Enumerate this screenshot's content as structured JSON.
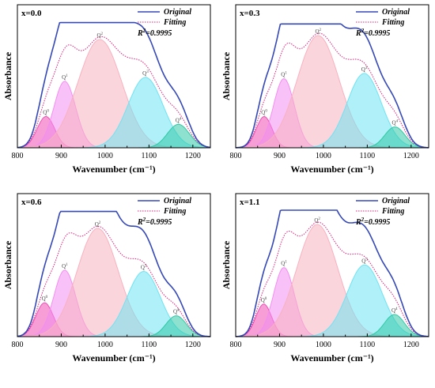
{
  "chart_data": [
    {
      "type": "area",
      "panel_label": "x=0.0",
      "xlabel": "Wavenumber (cm⁻¹)",
      "ylabel": "Absorbance",
      "xlim": [
        800,
        1240
      ],
      "xticks": [
        800,
        900,
        1000,
        1100,
        1200
      ],
      "legend": {
        "position": "top-right",
        "entries": [
          "Original",
          "Fitting"
        ],
        "r2_prefix": "R",
        "r2_sup": "2",
        "r2_value": "=0.9995"
      },
      "peaks": [
        {
          "name": "Q",
          "sup": "0",
          "center": 865,
          "height": 0.24,
          "width": 20,
          "color": "#f04fb4"
        },
        {
          "name": "Q",
          "sup": "1",
          "center": 908,
          "height": 0.51,
          "width": 25,
          "color": "#f28ef0"
        },
        {
          "name": "Q",
          "sup": "2",
          "center": 988,
          "height": 0.83,
          "width": 50,
          "color": "#f7b2c0"
        },
        {
          "name": "Q",
          "sup": "3",
          "center": 1092,
          "height": 0.54,
          "width": 40,
          "color": "#6fe3f2"
        },
        {
          "name": "Q",
          "sup": "4",
          "center": 1167,
          "height": 0.18,
          "width": 25,
          "color": "#2fc9a6"
        }
      ],
      "envelope_peak": 0.96
    },
    {
      "type": "area",
      "panel_label": "x=0.3",
      "xlabel": "Wavenumber (cm⁻¹)",
      "ylabel": "Absorbance",
      "xlim": [
        800,
        1240
      ],
      "xticks": [
        800,
        900,
        1000,
        1100,
        1200
      ],
      "legend": {
        "position": "top-right",
        "entries": [
          "Original",
          "Fitting"
        ],
        "r2_prefix": "R",
        "r2_sup": "2",
        "r2_value": "=0.9995"
      },
      "peaks": [
        {
          "name": "Q",
          "sup": "0",
          "center": 865,
          "height": 0.24,
          "width": 18,
          "color": "#f04fb4"
        },
        {
          "name": "Q",
          "sup": "1",
          "center": 910,
          "height": 0.53,
          "width": 24,
          "color": "#f28ef0"
        },
        {
          "name": "Q",
          "sup": "2",
          "center": 988,
          "height": 0.86,
          "width": 48,
          "color": "#f7b2c0"
        },
        {
          "name": "Q",
          "sup": "3",
          "center": 1093,
          "height": 0.57,
          "width": 39,
          "color": "#6fe3f2"
        },
        {
          "name": "Q",
          "sup": "4",
          "center": 1163,
          "height": 0.16,
          "width": 23,
          "color": "#2fc9a6"
        }
      ],
      "envelope_peak": 0.95
    },
    {
      "type": "area",
      "panel_label": "x=0.6",
      "xlabel": "Wavenumber (cm⁻¹)",
      "ylabel": "Absorbance",
      "xlim": [
        800,
        1240
      ],
      "xticks": [
        800,
        900,
        1000,
        1100,
        1200
      ],
      "legend": {
        "position": "top-right",
        "entries": [
          "Original",
          "Fitting"
        ],
        "r2_prefix": "R",
        "r2_sup": "2",
        "r2_value": "=0.9995"
      },
      "peaks": [
        {
          "name": "Q",
          "sup": "0",
          "center": 862,
          "height": 0.26,
          "width": 20,
          "color": "#f04fb4"
        },
        {
          "name": "Q",
          "sup": "1",
          "center": 908,
          "height": 0.51,
          "width": 25,
          "color": "#f28ef0"
        },
        {
          "name": "Q",
          "sup": "2",
          "center": 983,
          "height": 0.83,
          "width": 47,
          "color": "#f7b2c0"
        },
        {
          "name": "Q",
          "sup": "3",
          "center": 1088,
          "height": 0.5,
          "width": 38,
          "color": "#6fe3f2"
        },
        {
          "name": "Q",
          "sup": "4",
          "center": 1162,
          "height": 0.16,
          "width": 23,
          "color": "#2fc9a6"
        }
      ],
      "envelope_peak": 0.96
    },
    {
      "type": "area",
      "panel_label": "x=1.1",
      "xlabel": "Wavenumber (cm⁻¹)",
      "ylabel": "Absorbance",
      "xlim": [
        800,
        1240
      ],
      "xticks": [
        800,
        900,
        1000,
        1100,
        1200
      ],
      "legend": {
        "position": "top-right",
        "entries": [
          "Original",
          "Fitting"
        ],
        "r2_prefix": "R",
        "r2_sup": "2",
        "r2_value": "=0.9995"
      },
      "peaks": [
        {
          "name": "Q",
          "sup": "0",
          "center": 864,
          "height": 0.25,
          "width": 18,
          "color": "#f04fb4"
        },
        {
          "name": "Q",
          "sup": "1",
          "center": 910,
          "height": 0.53,
          "width": 24,
          "color": "#f28ef0"
        },
        {
          "name": "Q",
          "sup": "2",
          "center": 986,
          "height": 0.86,
          "width": 47,
          "color": "#f7b2c0"
        },
        {
          "name": "Q",
          "sup": "3",
          "center": 1094,
          "height": 0.55,
          "width": 40,
          "color": "#6fe3f2"
        },
        {
          "name": "Q",
          "sup": "4",
          "center": 1162,
          "height": 0.17,
          "width": 23,
          "color": "#2fc9a6"
        }
      ],
      "envelope_peak": 0.97
    }
  ],
  "colors": {
    "original": "#3548b8",
    "fitting": "#e0207a"
  }
}
